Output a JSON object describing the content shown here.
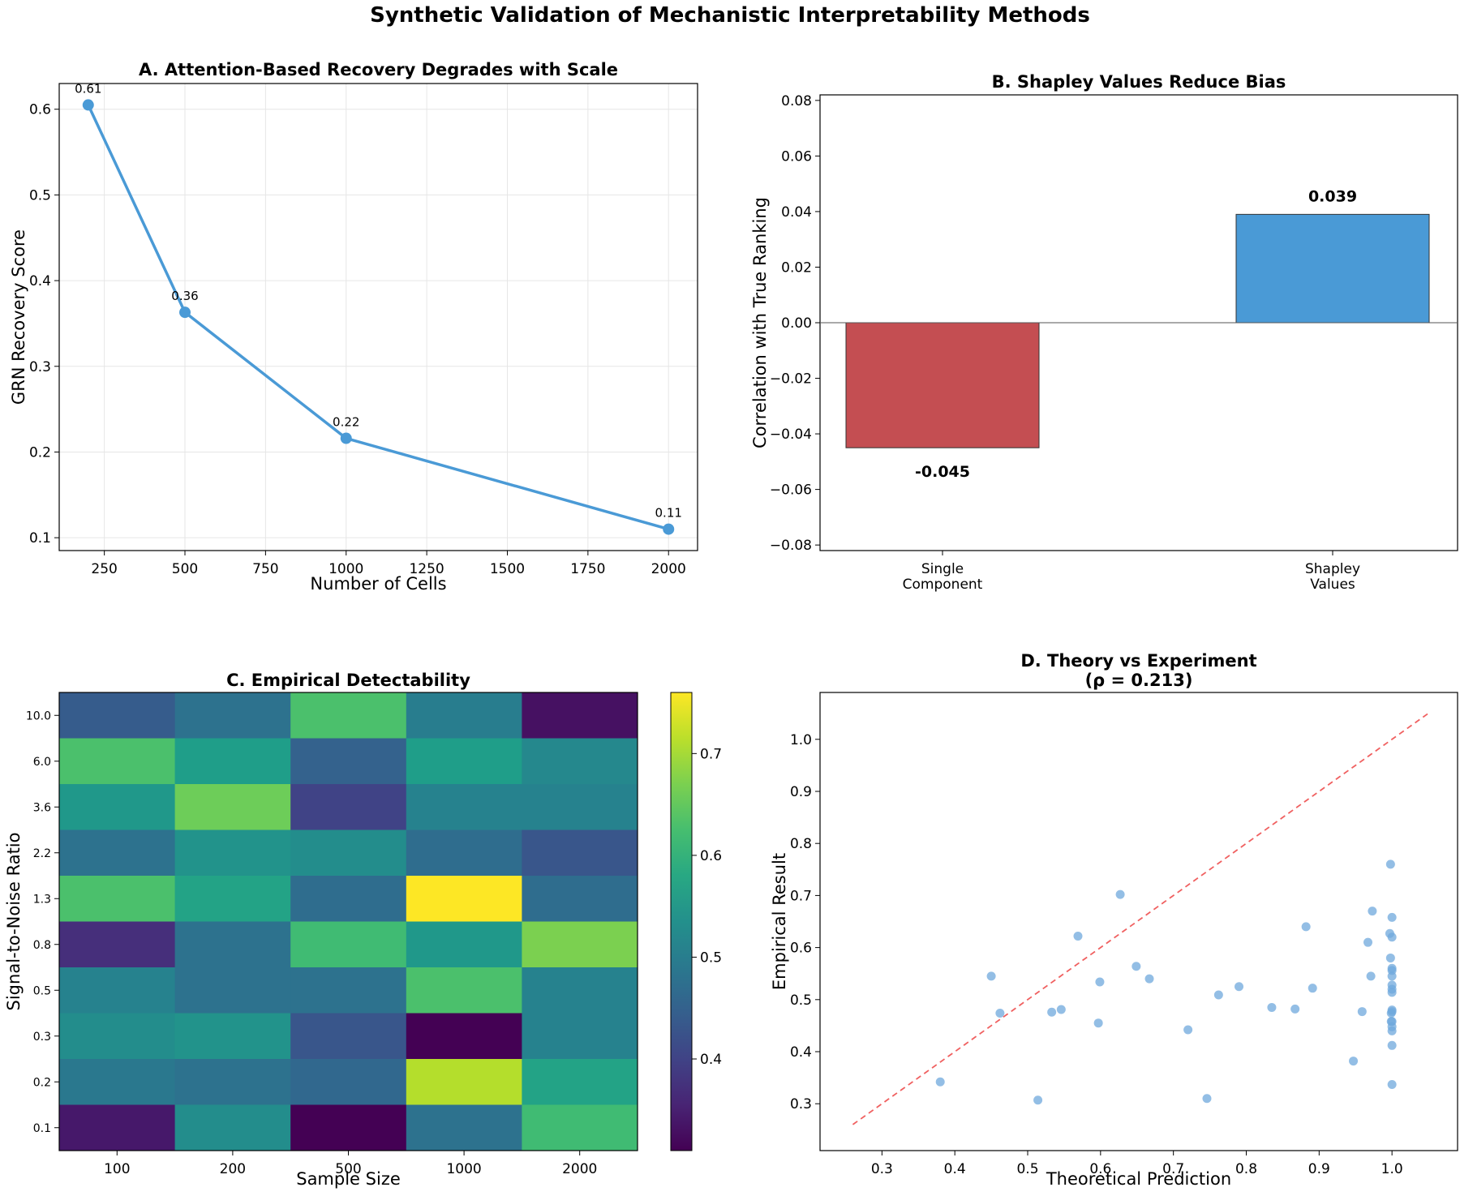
{
  "suptitle": "Synthetic Validation of Mechanistic Interpretability Methods",
  "colors": {
    "line_blue": "#4a9ad6",
    "bar_red": "#c44e52",
    "bar_blue": "#4a9ad6",
    "scatter_blue": "#6fa8dc",
    "diag_red": "#f06060",
    "grid": "#e6e6e6",
    "axis": "#000000"
  },
  "chart_data": [
    {
      "id": "A",
      "type": "line",
      "title": "A. Attention-Based Recovery Degrades with Scale",
      "xlabel": "Number of Cells",
      "ylabel": "GRN Recovery Score",
      "x": [
        200,
        500,
        1000,
        2000
      ],
      "y": [
        0.605,
        0.363,
        0.216,
        0.11
      ],
      "point_labels": [
        "0.61",
        "0.36",
        "0.22",
        "0.11"
      ],
      "xlim": [
        110,
        2090
      ],
      "ylim": [
        0.085,
        0.63
      ],
      "xticks": [
        250,
        500,
        750,
        1000,
        1250,
        1500,
        1750,
        2000
      ],
      "yticks": [
        0.1,
        0.2,
        0.3,
        0.4,
        0.5,
        0.6
      ],
      "ytick_labels": [
        "0.1",
        "0.2",
        "0.3",
        "0.4",
        "0.5",
        "0.6"
      ],
      "grid": true
    },
    {
      "id": "B",
      "type": "bar",
      "title": "B. Shapley Values Reduce Bias",
      "ylabel": "Correlation with True Ranking",
      "categories": [
        [
          "Single",
          "Component"
        ],
        [
          "Shapley",
          "Values"
        ]
      ],
      "values": [
        -0.045,
        0.039
      ],
      "value_labels": [
        "-0.045",
        "0.039"
      ],
      "ylim": [
        -0.082,
        0.082
      ],
      "yticks": [
        -0.08,
        -0.06,
        -0.04,
        -0.02,
        0.0,
        0.02,
        0.04,
        0.06,
        0.08
      ],
      "ytick_labels": [
        "−0.08",
        "−0.06",
        "−0.04",
        "−0.02",
        "0.00",
        "0.02",
        "0.04",
        "0.06",
        "0.08"
      ]
    },
    {
      "id": "C",
      "type": "heatmap",
      "title": "C. Empirical Detectability",
      "xlabel": "Sample Size",
      "ylabel": "Signal-to-Noise Ratio",
      "x_categories": [
        "100",
        "200",
        "500",
        "1000",
        "2000"
      ],
      "y_categories": [
        "10.0",
        "6.0",
        "3.6",
        "2.2",
        "1.3",
        "0.8",
        "0.5",
        "0.3",
        "0.2",
        "0.1"
      ],
      "values": [
        [
          0.44,
          0.48,
          0.63,
          0.5,
          0.33
        ],
        [
          0.63,
          0.56,
          0.45,
          0.56,
          0.52
        ],
        [
          0.55,
          0.66,
          0.4,
          0.51,
          0.51
        ],
        [
          0.48,
          0.54,
          0.53,
          0.47,
          0.43
        ],
        [
          0.63,
          0.57,
          0.47,
          0.76,
          0.47
        ],
        [
          0.37,
          0.48,
          0.62,
          0.55,
          0.67
        ],
        [
          0.51,
          0.48,
          0.48,
          0.63,
          0.51
        ],
        [
          0.53,
          0.54,
          0.43,
          0.31,
          0.51
        ],
        [
          0.49,
          0.48,
          0.46,
          0.71,
          0.57
        ],
        [
          0.34,
          0.53,
          0.31,
          0.48,
          0.62
        ]
      ],
      "colorbar": {
        "min": 0.31,
        "max": 0.76,
        "ticks": [
          0.4,
          0.5,
          0.6,
          0.7
        ],
        "tick_labels": [
          "0.4",
          "0.5",
          "0.6",
          "0.7"
        ]
      }
    },
    {
      "id": "D",
      "type": "scatter",
      "title_lines": [
        "D. Theory vs Experiment",
        "(ρ = 0.213)"
      ],
      "xlabel": "Theoretical Prediction",
      "ylabel": "Empirical Result",
      "xlim": [
        0.215,
        1.09
      ],
      "ylim": [
        0.21,
        1.09
      ],
      "xticks": [
        0.3,
        0.4,
        0.5,
        0.6,
        0.7,
        0.8,
        0.9,
        1.0
      ],
      "xtick_labels": [
        "0.3",
        "0.4",
        "0.5",
        "0.6",
        "0.7",
        "0.8",
        "0.9",
        "1.0"
      ],
      "yticks": [
        0.3,
        0.4,
        0.5,
        0.6,
        0.7,
        0.8,
        0.9,
        1.0
      ],
      "ytick_labels": [
        "0.3",
        "0.4",
        "0.5",
        "0.6",
        "0.7",
        "0.8",
        "0.9",
        "1.0"
      ],
      "diagonal": [
        0.26,
        1.05
      ],
      "points": [
        [
          0.38,
          0.342
        ],
        [
          0.45,
          0.545
        ],
        [
          0.462,
          0.474
        ],
        [
          0.514,
          0.307
        ],
        [
          0.533,
          0.476
        ],
        [
          0.546,
          0.481
        ],
        [
          0.569,
          0.622
        ],
        [
          0.597,
          0.455
        ],
        [
          0.599,
          0.534
        ],
        [
          0.627,
          0.702
        ],
        [
          0.649,
          0.564
        ],
        [
          0.667,
          0.54
        ],
        [
          0.72,
          0.442
        ],
        [
          0.746,
          0.31
        ],
        [
          0.762,
          0.509
        ],
        [
          0.79,
          0.525
        ],
        [
          0.835,
          0.485
        ],
        [
          0.867,
          0.482
        ],
        [
          0.882,
          0.64
        ],
        [
          0.891,
          0.522
        ],
        [
          0.947,
          0.382
        ],
        [
          0.959,
          0.477
        ],
        [
          0.967,
          0.61
        ],
        [
          0.971,
          0.545
        ],
        [
          0.973,
          0.67
        ],
        [
          0.997,
          0.627
        ],
        [
          0.998,
          0.76
        ],
        [
          0.998,
          0.58
        ],
        [
          0.999,
          0.474
        ],
        [
          0.999,
          0.458
        ],
        [
          1.0,
          0.658
        ],
        [
          1.0,
          0.62
        ],
        [
          1.0,
          0.56
        ],
        [
          1.0,
          0.556
        ],
        [
          1.0,
          0.545
        ],
        [
          1.0,
          0.528
        ],
        [
          1.0,
          0.52
        ],
        [
          1.0,
          0.514
        ],
        [
          1.0,
          0.48
        ],
        [
          1.0,
          0.477
        ],
        [
          1.0,
          0.458
        ],
        [
          1.0,
          0.448
        ],
        [
          1.0,
          0.44
        ],
        [
          1.0,
          0.412
        ],
        [
          1.0,
          0.337
        ]
      ]
    }
  ]
}
